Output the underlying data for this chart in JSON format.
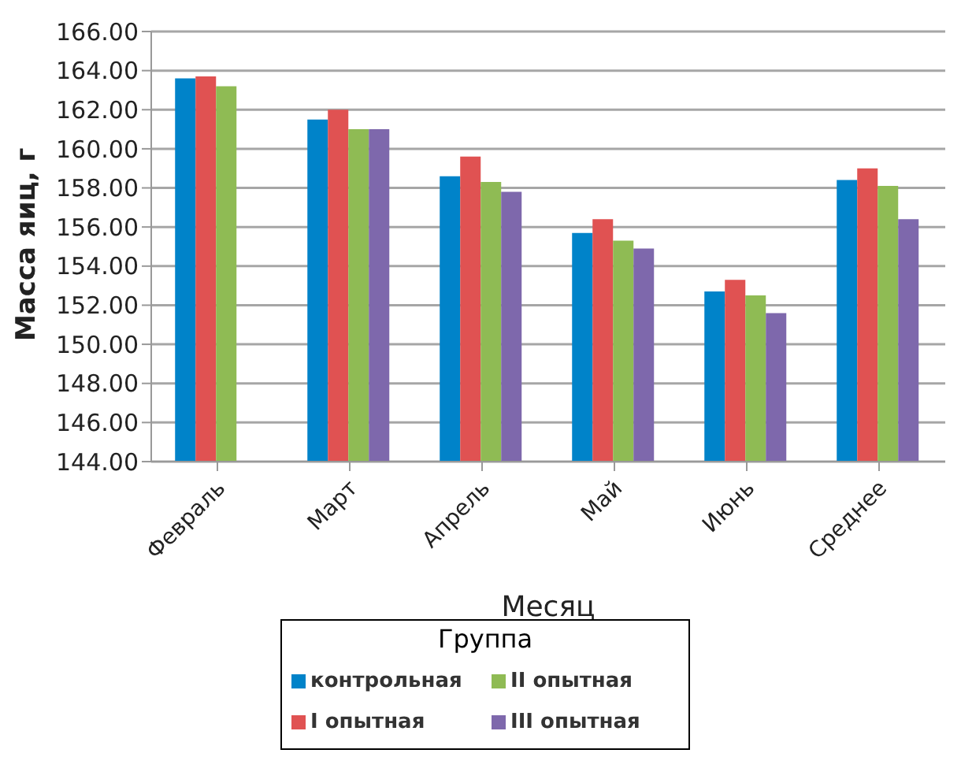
{
  "chart_data": {
    "type": "bar",
    "xlabel": "Месяц",
    "ylabel": "Масса яиц, г",
    "legend_title": "Группа",
    "categories": [
      "Февраль",
      "Март",
      "Апрель",
      "Май",
      "Июнь",
      "Среднее"
    ],
    "series": [
      {
        "name": "контрольная",
        "color": "#0083c9",
        "values": [
          163.6,
          161.5,
          158.6,
          155.7,
          152.7,
          158.4
        ]
      },
      {
        "name": "I опытная",
        "color": "#e05252",
        "values": [
          163.7,
          162.0,
          159.6,
          156.4,
          153.3,
          159.0
        ]
      },
      {
        "name": "II опытная",
        "color": "#8fbb54",
        "values": [
          163.2,
          161.0,
          158.3,
          155.3,
          152.5,
          158.1
        ]
      },
      {
        "name": "III опытная",
        "color": "#7e68ac",
        "values": [
          null,
          161.0,
          157.8,
          154.9,
          151.6,
          156.4
        ]
      }
    ],
    "ylim": [
      144,
      166
    ],
    "yticks": [
      {
        "value": 144,
        "label": "144.00"
      },
      {
        "value": 146,
        "label": "146.00"
      },
      {
        "value": 148,
        "label": "148.00"
      },
      {
        "value": 150,
        "label": "150.00"
      },
      {
        "value": 152,
        "label": "152.00"
      },
      {
        "value": 154,
        "label": "154.00"
      },
      {
        "value": 156,
        "label": "156.00"
      },
      {
        "value": 158,
        "label": "158.00"
      },
      {
        "value": 160,
        "label": "160.00"
      },
      {
        "value": 162,
        "label": "162.00"
      },
      {
        "value": 164,
        "label": "164.00"
      },
      {
        "value": 166,
        "label": "166.00"
      }
    ],
    "grid": "y",
    "legend": "bottom"
  }
}
